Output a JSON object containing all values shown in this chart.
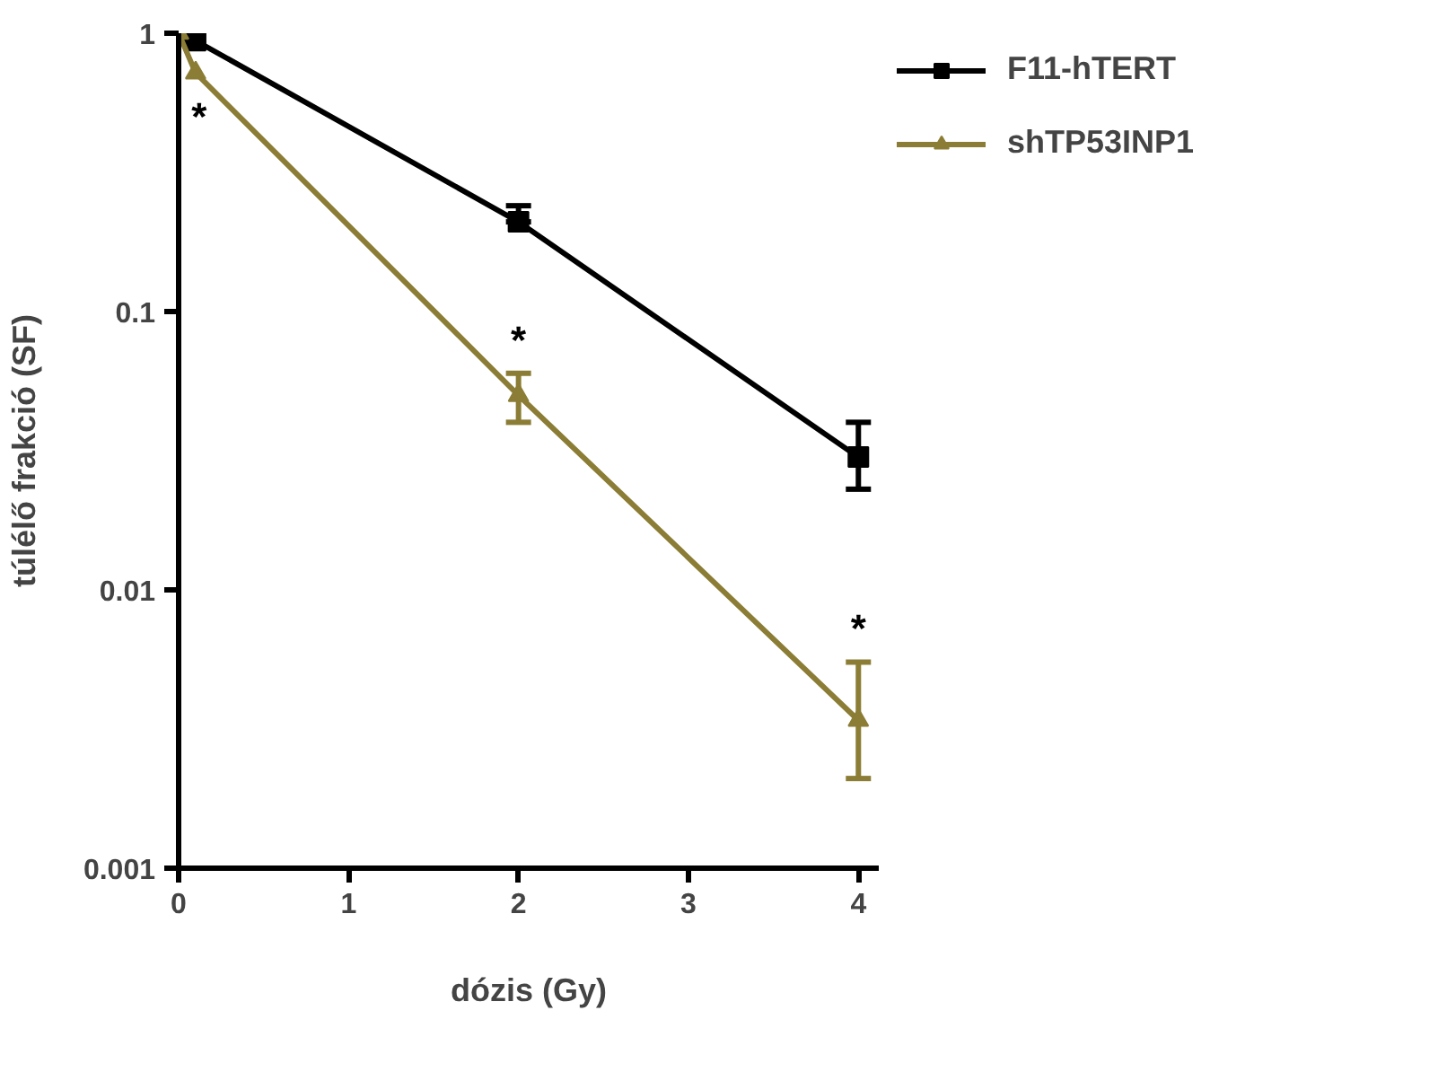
{
  "chart_data": {
    "type": "line",
    "xlabel": "dózis (Gy)",
    "ylabel": "túlélő frakció (SF)",
    "log": "y",
    "grid": false,
    "legend": "right",
    "line_style": "solid",
    "xlim": [
      0,
      4.12
    ],
    "xticks": [
      0,
      1,
      2,
      3,
      4
    ],
    "ylim": [
      0.001,
      1
    ],
    "yticks": [
      1,
      0.1,
      0.01,
      0.001
    ],
    "series": [
      {
        "name": "F11-hTERT",
        "color": "#000000",
        "marker": "square",
        "x": [
          0,
          0.1,
          2,
          4
        ],
        "values": [
          1,
          0.94,
          0.21,
          0.03
        ],
        "errors": [
          null,
          null,
          [
            0.21,
            0.24
          ],
          [
            0.023,
            0.04
          ]
        ]
      },
      {
        "name": "shTP53INP1",
        "color": "#8b7d35",
        "marker": "triangle",
        "x": [
          0,
          0.1,
          2,
          4
        ],
        "values": [
          1,
          0.72,
          0.05,
          0.0034
        ],
        "errors": [
          null,
          null,
          [
            0.04,
            0.06
          ],
          [
            0.0021,
            0.0055
          ]
        ]
      }
    ],
    "annotations": [
      {
        "text": "*",
        "x": 0.1,
        "y": 0.72
      },
      {
        "text": "*",
        "x": 2,
        "y": 0.06
      },
      {
        "text": "*",
        "x": 4,
        "y": 0.0055
      }
    ]
  }
}
